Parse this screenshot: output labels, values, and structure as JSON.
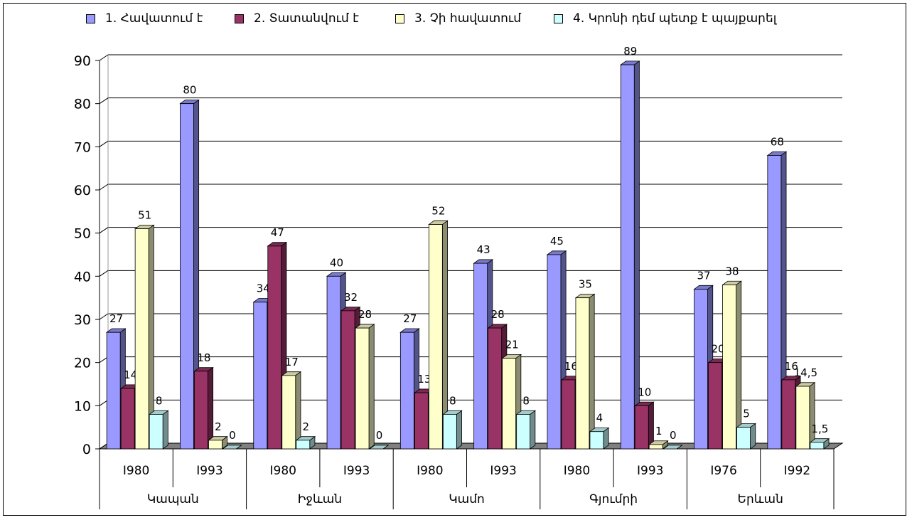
{
  "chart_data": {
    "type": "bar",
    "title": "",
    "xlabel": "",
    "ylabel": "",
    "ylim": [
      0,
      90
    ],
    "yticks": [
      0,
      10,
      20,
      30,
      40,
      50,
      60,
      70,
      80,
      90
    ],
    "grid": true,
    "legend_position": "top",
    "categories": [
      {
        "year": "I980",
        "group": "Կապան"
      },
      {
        "year": "I993",
        "group": "Կապան"
      },
      {
        "year": "I980",
        "group": "Իջևան"
      },
      {
        "year": "I993",
        "group": "Իջևան"
      },
      {
        "year": "I980",
        "group": "Կամո"
      },
      {
        "year": "I993",
        "group": "Կամո"
      },
      {
        "year": "I980",
        "group": "Գյումրի"
      },
      {
        "year": "I993",
        "group": "Գյումրի"
      },
      {
        "year": "I976",
        "group": "Երևան"
      },
      {
        "year": "I992",
        "group": "Երևան"
      }
    ],
    "groups": [
      "Կապան",
      "Իջևան",
      "Կամո",
      "Գյումրի",
      "Երևան"
    ],
    "series": [
      {
        "name": "1. Հավատում է",
        "color": "#9999ff",
        "values": [
          27,
          80,
          34,
          40,
          27,
          43,
          45,
          89,
          37,
          68
        ],
        "labels": [
          "27",
          "80",
          "34",
          "40",
          "27",
          "43",
          "45",
          "89",
          "37",
          "68"
        ]
      },
      {
        "name": "2. Տատանվում է",
        "color": "#993366",
        "values": [
          14,
          18,
          47,
          32,
          13,
          28,
          16,
          10,
          20,
          16
        ],
        "labels": [
          "14",
          "18",
          "47",
          "32",
          "13",
          "28",
          "16",
          "10",
          "20",
          "16"
        ]
      },
      {
        "name": "3. Չի հավատում",
        "color": "#ffffcc",
        "values": [
          51,
          2,
          17,
          28,
          52,
          21,
          35,
          1,
          38,
          14.5
        ],
        "labels": [
          "51",
          "2",
          "17",
          "28",
          "52",
          "21",
          "35",
          "1",
          "38",
          "14,5"
        ]
      },
      {
        "name": "4. Կրոնի դեմ պետք է պայքարել",
        "color": "#ccffff",
        "values": [
          8,
          0,
          2,
          0,
          8,
          8,
          4,
          0,
          5,
          1.5
        ],
        "labels": [
          "8",
          "0",
          "2",
          "0",
          "8",
          "8",
          "4",
          "0",
          "5",
          "1,5"
        ]
      }
    ]
  }
}
